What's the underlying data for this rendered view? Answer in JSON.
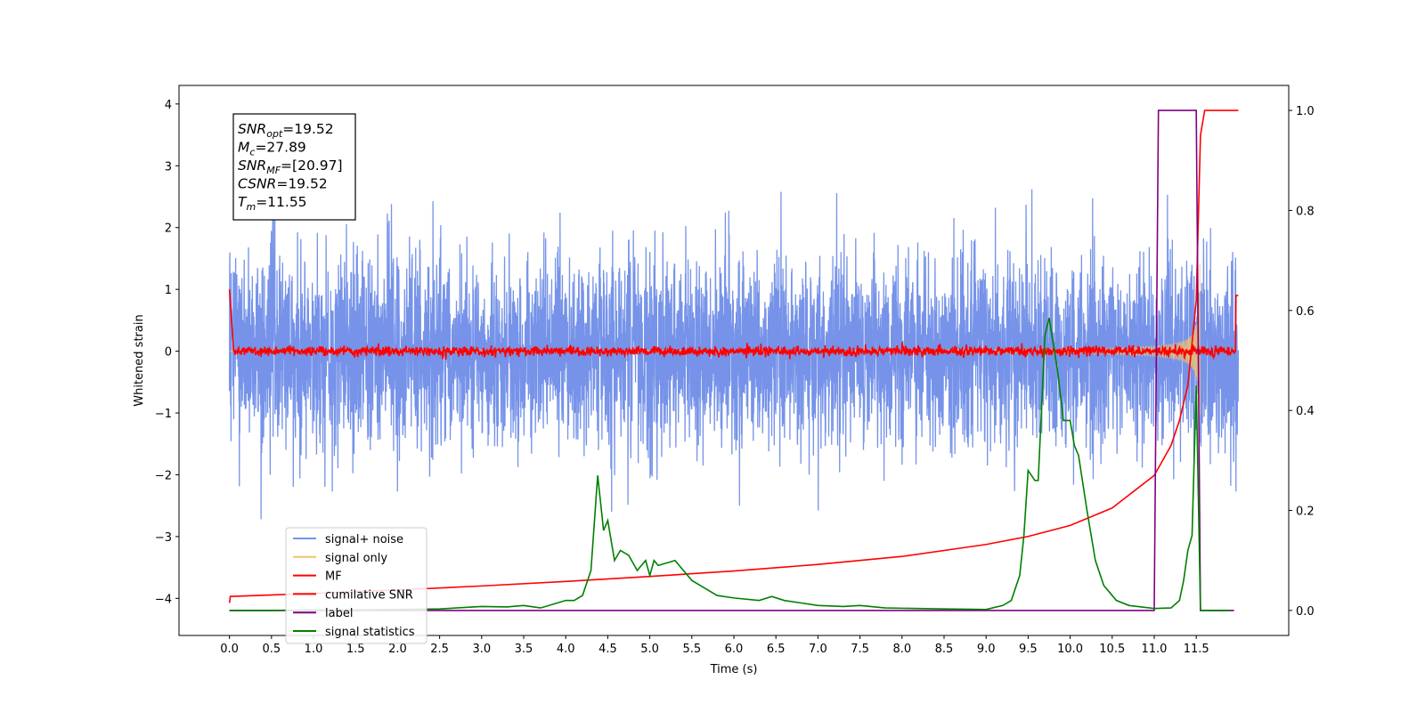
{
  "chart_data": {
    "type": "line",
    "xlabel": "Time (s)",
    "ylabel": "Whitened strain",
    "ylabel_right": "",
    "xlim": [
      -0.6,
      12.6
    ],
    "ylim": [
      -4.6,
      4.3
    ],
    "ylim_right": [
      -0.05,
      1.05
    ],
    "x_ticks": [
      "0.0",
      "0.5",
      "1.0",
      "1.5",
      "2.0",
      "2.5",
      "3.0",
      "3.5",
      "4.0",
      "4.5",
      "5.0",
      "5.5",
      "6.0",
      "6.5",
      "7.0",
      "7.5",
      "8.0",
      "8.5",
      "9.0",
      "9.5",
      "10.0",
      "10.5",
      "11.0",
      "11.5"
    ],
    "y_ticks": [
      "4",
      "3",
      "2",
      "1",
      "0",
      "−1",
      "−2",
      "−3",
      "−4"
    ],
    "y_ticks_right": [
      "1.0",
      "0.8",
      "0.6",
      "0.4",
      "0.2",
      "0.0"
    ],
    "grid": false,
    "legend_position": "lower-left",
    "annotation": {
      "lines": [
        {
          "sym": "SNR",
          "sub": "opt",
          "value": "=19.52"
        },
        {
          "sym": "M",
          "sub": "c",
          "value": "=27.89"
        },
        {
          "sym": "SNR",
          "sub": "MF",
          "value": "=[20.97]"
        },
        {
          "sym": "CSNR",
          "sub": "",
          "value": "=19.52"
        },
        {
          "sym": "T",
          "sub": "m",
          "value": "=11.55"
        }
      ]
    },
    "series": [
      {
        "name": "signal+ noise",
        "color": "#4169e1",
        "axis": "left",
        "kind": "noise",
        "x_range": [
          0.0,
          12.0
        ],
        "std": 0.75,
        "extreme_range": [
          -3.7,
          3.35
        ]
      },
      {
        "name": "signal only",
        "color": "#f5c16c",
        "axis": "left",
        "kind": "chirp",
        "x_range": [
          0.0,
          11.55
        ],
        "peak_amplitude": 1.5,
        "merger_time": 11.55
      },
      {
        "name": "MF",
        "color": "#ff0000",
        "axis": "left",
        "kind": "mf",
        "x_range": [
          0.0,
          12.0
        ],
        "start_value": 1.0,
        "baseline": 0.0,
        "end_value": 0.9
      },
      {
        "name": "cumilative SNR",
        "color": "#ff0000",
        "axis": "right",
        "points": [
          [
            0.0,
            0.015
          ],
          [
            0.01,
            0.028
          ],
          [
            1.0,
            0.034
          ],
          [
            2.0,
            0.041
          ],
          [
            3.0,
            0.049
          ],
          [
            4.0,
            0.058
          ],
          [
            5.0,
            0.068
          ],
          [
            6.0,
            0.079
          ],
          [
            7.0,
            0.092
          ],
          [
            8.0,
            0.108
          ],
          [
            9.0,
            0.132
          ],
          [
            9.5,
            0.148
          ],
          [
            10.0,
            0.17
          ],
          [
            10.5,
            0.205
          ],
          [
            11.0,
            0.27
          ],
          [
            11.2,
            0.33
          ],
          [
            11.3,
            0.38
          ],
          [
            11.4,
            0.45
          ],
          [
            11.5,
            0.62
          ],
          [
            11.55,
            0.95
          ],
          [
            11.6,
            1.0
          ],
          [
            12.0,
            1.0
          ]
        ]
      },
      {
        "name": "label",
        "color": "#800080",
        "axis": "right",
        "points": [
          [
            0.0,
            0.0
          ],
          [
            11.0,
            0.0
          ],
          [
            11.05,
            1.0
          ],
          [
            11.5,
            1.0
          ],
          [
            11.55,
            0.0
          ],
          [
            11.95,
            0.0
          ]
        ]
      },
      {
        "name": "signal statistics",
        "color": "#008000",
        "axis": "right",
        "points": [
          [
            0.0,
            0.0
          ],
          [
            0.5,
            0.0
          ],
          [
            1.0,
            0.001
          ],
          [
            1.5,
            0.001
          ],
          [
            2.0,
            0.002
          ],
          [
            2.5,
            0.003
          ],
          [
            3.0,
            0.008
          ],
          [
            3.3,
            0.007
          ],
          [
            3.5,
            0.01
          ],
          [
            3.7,
            0.005
          ],
          [
            4.0,
            0.02
          ],
          [
            4.1,
            0.02
          ],
          [
            4.2,
            0.03
          ],
          [
            4.3,
            0.08
          ],
          [
            4.38,
            0.27
          ],
          [
            4.45,
            0.16
          ],
          [
            4.5,
            0.18
          ],
          [
            4.58,
            0.1
          ],
          [
            4.65,
            0.12
          ],
          [
            4.75,
            0.11
          ],
          [
            4.85,
            0.08
          ],
          [
            4.95,
            0.1
          ],
          [
            5.0,
            0.07
          ],
          [
            5.05,
            0.1
          ],
          [
            5.1,
            0.09
          ],
          [
            5.3,
            0.1
          ],
          [
            5.4,
            0.08
          ],
          [
            5.5,
            0.06
          ],
          [
            5.6,
            0.05
          ],
          [
            5.8,
            0.03
          ],
          [
            6.0,
            0.025
          ],
          [
            6.3,
            0.02
          ],
          [
            6.45,
            0.028
          ],
          [
            6.6,
            0.02
          ],
          [
            6.8,
            0.015
          ],
          [
            7.0,
            0.01
          ],
          [
            7.3,
            0.008
          ],
          [
            7.5,
            0.01
          ],
          [
            7.8,
            0.005
          ],
          [
            8.5,
            0.003
          ],
          [
            9.0,
            0.002
          ],
          [
            9.2,
            0.01
          ],
          [
            9.3,
            0.02
          ],
          [
            9.4,
            0.07
          ],
          [
            9.45,
            0.15
          ],
          [
            9.5,
            0.28
          ],
          [
            9.58,
            0.26
          ],
          [
            9.62,
            0.26
          ],
          [
            9.7,
            0.55
          ],
          [
            9.75,
            0.585
          ],
          [
            9.85,
            0.48
          ],
          [
            9.92,
            0.38
          ],
          [
            10.0,
            0.38
          ],
          [
            10.05,
            0.33
          ],
          [
            10.1,
            0.31
          ],
          [
            10.2,
            0.2
          ],
          [
            10.3,
            0.1
          ],
          [
            10.4,
            0.05
          ],
          [
            10.55,
            0.02
          ],
          [
            10.7,
            0.01
          ],
          [
            11.0,
            0.004
          ],
          [
            11.2,
            0.005
          ],
          [
            11.3,
            0.02
          ],
          [
            11.35,
            0.06
          ],
          [
            11.4,
            0.12
          ],
          [
            11.45,
            0.15
          ],
          [
            11.5,
            0.45
          ],
          [
            11.55,
            0.0
          ],
          [
            11.9,
            0.0
          ]
        ]
      }
    ]
  }
}
